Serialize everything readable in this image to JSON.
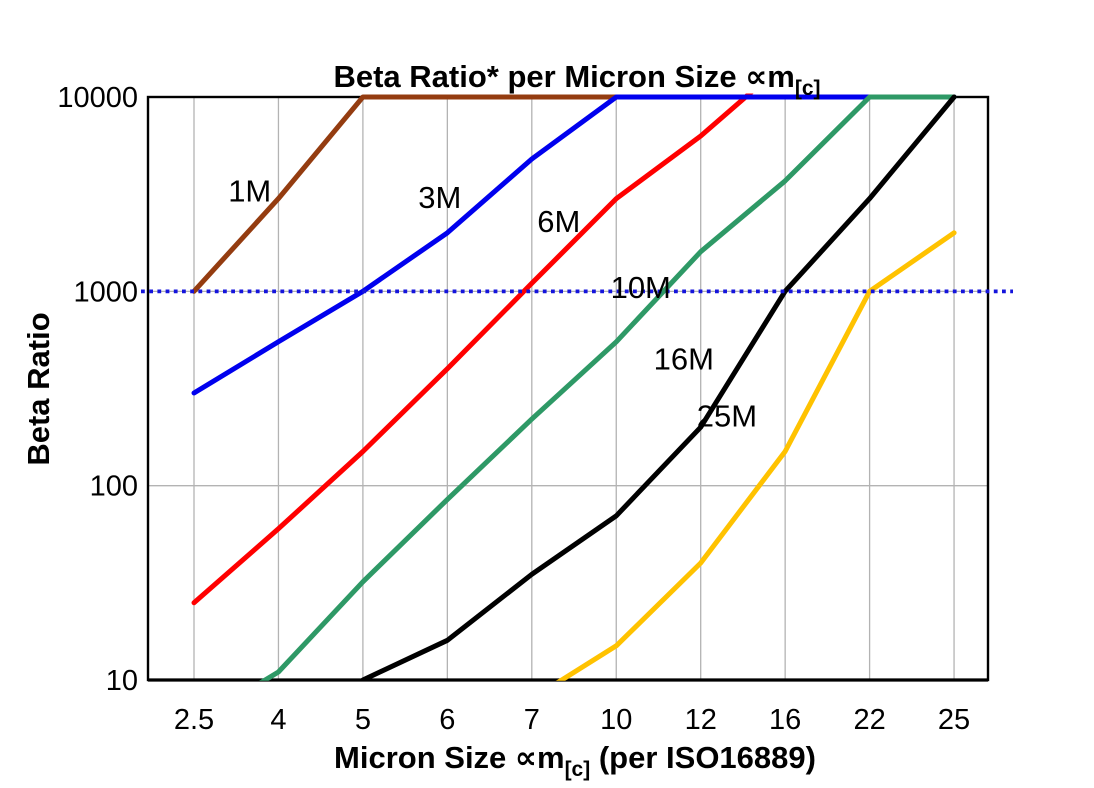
{
  "chart_data": {
    "type": "line",
    "title": {
      "main": "Beta Ratio* per Micron Size ∝m",
      "sub": "[c]"
    },
    "x_axis": {
      "title_main": "Micron Size ∝m",
      "title_sub": "[c]",
      "title_rest": " (per ISO16889)",
      "tick_labels": [
        "2.5",
        "4",
        "5",
        "6",
        "7",
        "10",
        "12",
        "16",
        "22",
        "25"
      ]
    },
    "y_axis": {
      "title": "Beta Ratio",
      "scale": "log",
      "range": [
        10,
        10000
      ],
      "tick_values": [
        10,
        100,
        1000,
        10000
      ],
      "tick_labels": [
        "10",
        "100",
        "1000",
        "10000"
      ]
    },
    "grid": {
      "show": true,
      "color": "#B3B3B3"
    },
    "plot_border_color": "#000000",
    "background": "#FFFFFF",
    "reference_line": {
      "value": 1000,
      "color": "#1414DC",
      "style": "dotted"
    },
    "clip_note": "values above 10000 run along the top axis (off-scale, clipped)",
    "categories": [
      2.5,
      4,
      5,
      6,
      7,
      10,
      12,
      16,
      22,
      25
    ],
    "series": [
      {
        "name": "1M",
        "color": "#943C10",
        "label_color": "#A97C50",
        "values": [
          1000,
          3000,
          10000,
          10000,
          10000,
          10000,
          10000,
          10000,
          10000,
          10000
        ],
        "label_anchor": {
          "i": 0.66,
          "v": 3300
        }
      },
      {
        "name": "6M",
        "color": "#FF0000",
        "label_color": "#FF0000",
        "values": [
          25,
          60,
          150,
          400,
          1100,
          3000,
          6300,
          15000,
          15000,
          15000
        ],
        "label_anchor": {
          "i": 4.32,
          "v": 2300
        }
      },
      {
        "name": "3M",
        "color": "#0000EE",
        "label_color": "#0000EE",
        "values": [
          300,
          550,
          1000,
          2000,
          4800,
          10000,
          10000,
          10000,
          10000,
          10000
        ],
        "label_anchor": {
          "i": 2.91,
          "v": 3050
        }
      },
      {
        "name": "10M",
        "color": "#2E9966",
        "label_color": "#00A13F",
        "values": [
          6,
          11,
          32,
          85,
          220,
          550,
          1600,
          3700,
          10000,
          10000
        ],
        "label_anchor": {
          "i": 5.29,
          "v": 1050
        }
      },
      {
        "name": "16M",
        "color": "#000000",
        "label_color": "#000000",
        "values": [
          null,
          null,
          10,
          16,
          35,
          70,
          200,
          1000,
          3000,
          10000
        ],
        "label_anchor": {
          "i": 5.8,
          "v": 450
        }
      },
      {
        "name": "25M",
        "color": "#FFC200",
        "label_color": "#FFC200",
        "values": [
          null,
          null,
          null,
          null,
          8,
          15,
          40,
          150,
          1000,
          2000
        ],
        "label_anchor": {
          "i": 6.31,
          "v": 230
        }
      }
    ]
  }
}
